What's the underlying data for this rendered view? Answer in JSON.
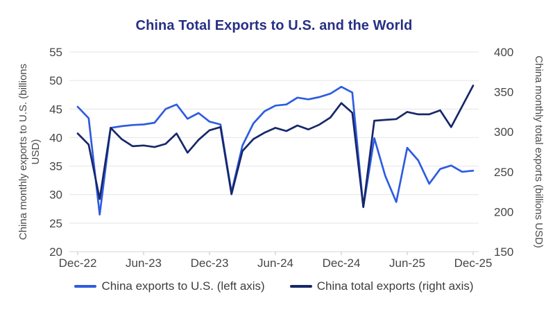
{
  "chart_data": {
    "type": "line",
    "title": "China Total Exports to U.S. and the World",
    "x": [
      "Dec-22",
      "Jan-23",
      "Feb-23",
      "Mar-23",
      "Apr-23",
      "May-23",
      "Jun-23",
      "Jul-23",
      "Aug-23",
      "Sep-23",
      "Oct-23",
      "Nov-23",
      "Dec-23",
      "Jan-24",
      "Feb-24",
      "Mar-24",
      "Apr-24",
      "May-24",
      "Jun-24",
      "Jul-24",
      "Aug-24",
      "Sep-24",
      "Oct-24",
      "Nov-24",
      "Dec-24",
      "Jan-25",
      "Feb-25",
      "Mar-25",
      "Apr-25",
      "May-25",
      "Jun-25",
      "Jul-25",
      "Aug-25",
      "Sep-25",
      "Oct-25",
      "Nov-25",
      "Dec-25"
    ],
    "x_tick_labels": [
      "Dec-22",
      "Jun-23",
      "Dec-23",
      "Jun-24",
      "Dec-24",
      "Jun-25",
      "Dec-25"
    ],
    "series": [
      {
        "name": "China exports to U.S. (left axis)",
        "axis": "left",
        "color": "#2e5ce0",
        "values": [
          45.4,
          43.4,
          26.5,
          41.7,
          42.0,
          42.2,
          42.3,
          42.6,
          45.0,
          45.8,
          43.3,
          44.3,
          42.8,
          42.3,
          30.4,
          38.6,
          42.5,
          44.6,
          45.6,
          45.8,
          47.0,
          46.7,
          47.1,
          47.7,
          48.9,
          47.9,
          27.8,
          39.9,
          33.3,
          28.7,
          38.2,
          36.0,
          31.9,
          34.5,
          35.1,
          34.0,
          34.2
        ]
      },
      {
        "name": "China total exports (right axis)",
        "axis": "right",
        "color": "#172769",
        "values": [
          298,
          284,
          216,
          305,
          291,
          282,
          283,
          281,
          285,
          298,
          274,
          290,
          302,
          306,
          222,
          276,
          291,
          299,
          305,
          301,
          308,
          303,
          309,
          318,
          336,
          324,
          206,
          314,
          315,
          316,
          325,
          322,
          322,
          327,
          306,
          332,
          358
        ]
      }
    ],
    "left_axis": {
      "label": "China monthly exports to U.S. (billions USD)",
      "min": 20,
      "max": 55,
      "ticks": [
        20,
        25,
        30,
        35,
        40,
        45,
        50,
        55
      ]
    },
    "right_axis": {
      "label": "China monthly total exports (billions USD)",
      "min": 150,
      "max": 400,
      "ticks": [
        150,
        200,
        250,
        300,
        350,
        400
      ]
    },
    "grid": true,
    "legend_position": "bottom",
    "units": "billions USD"
  },
  "style_colors": {
    "title": "#272f85",
    "grid_line": "#e4e4e4",
    "axis_line": "#d6d6d6",
    "tick_mark": "#c4c4c4",
    "tick_text": "#454545",
    "legend_text": "#3d3d3d"
  }
}
